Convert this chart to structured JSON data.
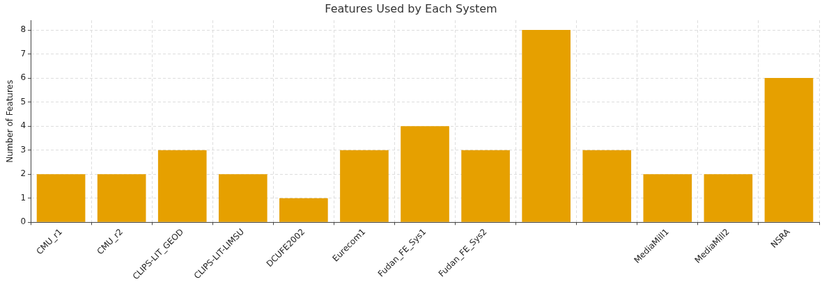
{
  "chart_data": {
    "type": "bar",
    "title": "Features Used by Each System",
    "ylabel": "Number of Features",
    "categories": [
      "CMU_r1",
      "CMU_r2",
      "CLIPS-LIT_GEOD",
      "CLIPS-LIT-LIMSU",
      "DCUFE2002",
      "Eurecom1",
      "Fudan_FE_Sys1",
      "Fudan_FE_Sys2",
      null,
      null,
      "MediaMill1",
      "MediaMill2",
      "NSRA"
    ],
    "values": [
      2,
      2,
      3,
      2,
      1,
      3,
      4,
      3,
      8,
      3,
      2,
      2,
      6
    ],
    "color": "#e6a000",
    "ylim": [
      0,
      8.4
    ],
    "yticks": [
      0,
      1,
      2,
      3,
      4,
      5,
      6,
      7,
      8
    ],
    "grid": true
  }
}
